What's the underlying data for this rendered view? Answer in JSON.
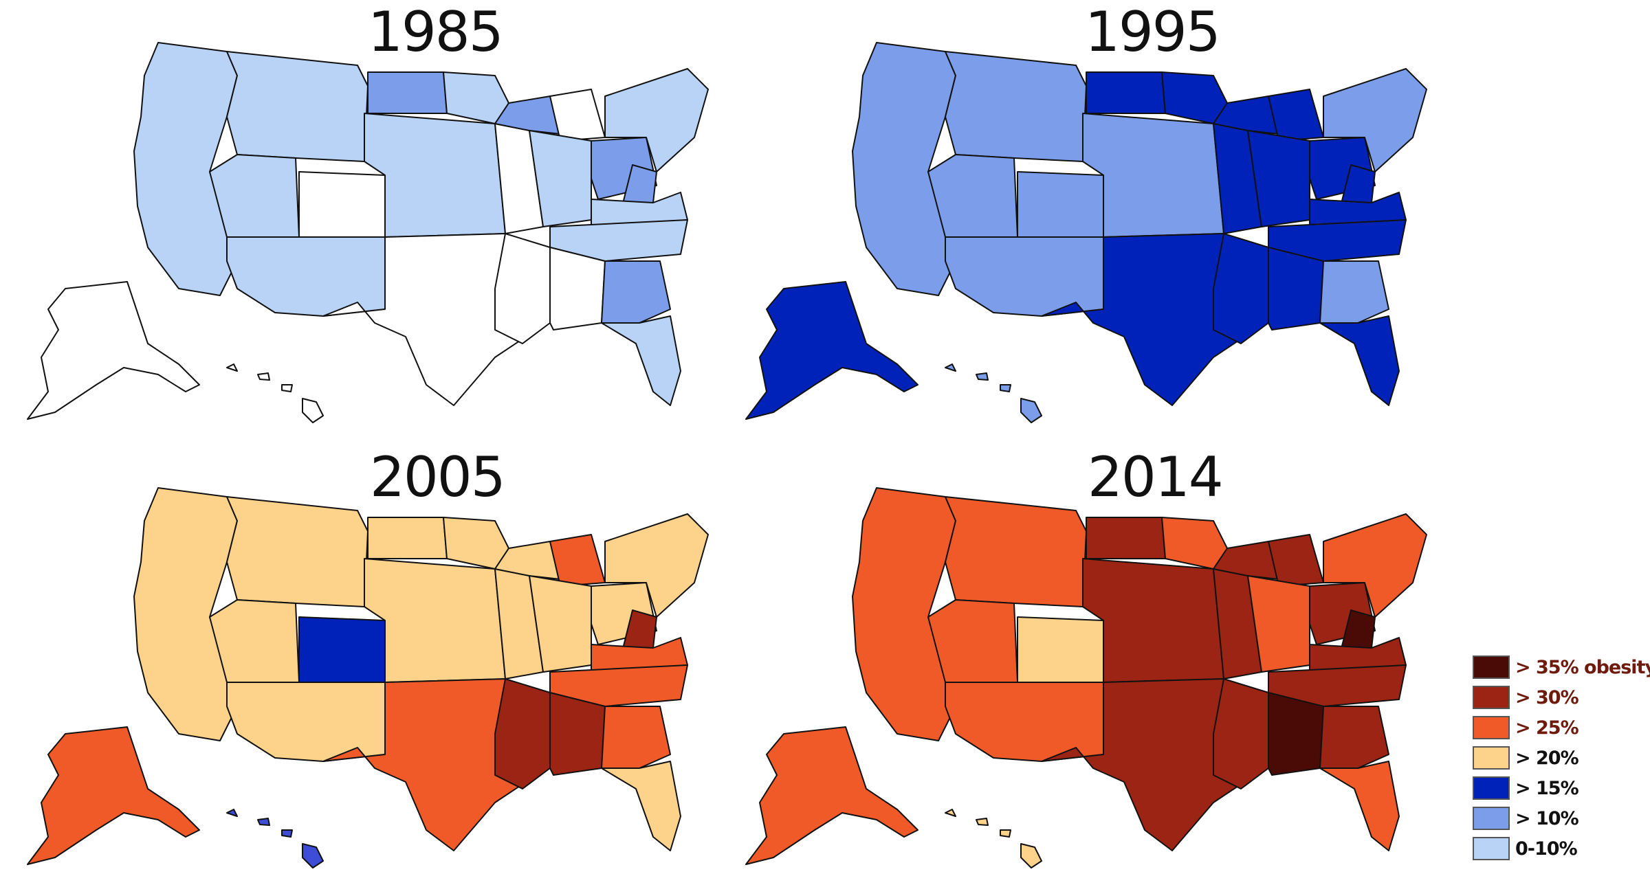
{
  "panels": [
    {
      "year": "1985",
      "fills": {
        "base": "#ffffff",
        "pac": "#b9d3f7",
        "mtn": "#b9d3f7",
        "az": "#b9d3f7",
        "ut": "#b9d3f7",
        "mtn2": "#b9d3f7",
        "nd": "#7c9eea",
        "mn": "#b9d3f7",
        "ia": "#ffffff",
        "wi": "#7c9eea",
        "mi": "#ffffff",
        "il": "#b9d3f7",
        "oh": "#7c9eea",
        "ky": "#b9d3f7",
        "tn": "#b9d3f7",
        "ga": "#7c9eea",
        "fl": "#b9d3f7",
        "ne": "#b9d3f7",
        "ny": "#b9d3f7",
        "tx": "#ffffff",
        "ak": "#ffffff",
        "hi": "#ffffff",
        "co": "#ffffff",
        "ms": "#ffffff",
        "la": "#ffffff",
        "wv": "#7c9eea"
      }
    },
    {
      "year": "1995",
      "fills": {
        "base": "#7c9eea",
        "pac": "#7c9eea",
        "mtn": "#7c9eea",
        "az": "#7c9eea",
        "ut": "#7c9eea",
        "mtn2": "#7c9eea",
        "nd": "#0022b8",
        "mn": "#0022b8",
        "ia": "#0022b8",
        "wi": "#0022b8",
        "mi": "#0022b8",
        "il": "#0022b8",
        "oh": "#0022b8",
        "ky": "#0022b8",
        "tn": "#0022b8",
        "ga": "#7c9eea",
        "fl": "#0022b8",
        "ne": "#7c9eea",
        "ny": "#7c9eea",
        "tx": "#0022b8",
        "ak": "#0022b8",
        "hi": "#7c9eea",
        "co": "#7c9eea",
        "ms": "#0022b8",
        "la": "#0022b8",
        "wv": "#0022b8"
      }
    },
    {
      "year": "2005",
      "fills": {
        "base": "#fdd38b",
        "pac": "#fdd38b",
        "mtn": "#fdd38b",
        "az": "#fdd38b",
        "ut": "#fdd38b",
        "mtn2": "#fdd38b",
        "nd": "#fdd38b",
        "mn": "#fdd38b",
        "ia": "#fdd38b",
        "wi": "#fdd38b",
        "mi": "#f05a28",
        "il": "#fdd38b",
        "oh": "#fdd38b",
        "ky": "#f05a28",
        "tn": "#f05a28",
        "ga": "#f05a28",
        "fl": "#fdd38b",
        "ne": "#fdd38b",
        "ny": "#fdd38b",
        "tx": "#f05a28",
        "ak": "#f05a28",
        "hi": "#3d4dd6",
        "co": "#0022b8",
        "ms": "#9b2414",
        "la": "#9b2414",
        "wv": "#9b2414"
      }
    },
    {
      "year": "2014",
      "fills": {
        "base": "#f05a28",
        "pac": "#f05a28",
        "mtn": "#f05a28",
        "az": "#f05a28",
        "ut": "#f05a28",
        "mtn2": "#f05a28",
        "nd": "#9b2414",
        "mn": "#f05a28",
        "ia": "#9b2414",
        "wi": "#9b2414",
        "mi": "#9b2414",
        "il": "#f05a28",
        "oh": "#9b2414",
        "ky": "#9b2414",
        "tn": "#9b2414",
        "ga": "#9b2414",
        "fl": "#f05a28",
        "ne": "#9b2414",
        "ny": "#f05a28",
        "tx": "#9b2414",
        "ak": "#f05a28",
        "hi": "#fdd38b",
        "co": "#fdd38b",
        "ms": "#4a0a06",
        "la": "#9b2414",
        "wv": "#4a0a06"
      }
    }
  ],
  "legend": [
    {
      "label": "> 35% obesity",
      "color": "#4a0a06",
      "dark": true
    },
    {
      "label": "> 30%",
      "color": "#9b2414",
      "dark": true
    },
    {
      "label": "> 25%",
      "color": "#f05a28",
      "dark": true
    },
    {
      "label": "> 20%",
      "color": "#fdd38b",
      "dark": true
    },
    {
      "label": "> 15%",
      "color": "#0022b8",
      "dark": true
    },
    {
      "label": "> 10%",
      "color": "#7c9eea",
      "dark": true
    },
    {
      "label": "0-10%",
      "color": "#b9d3f7",
      "dark": true
    }
  ]
}
